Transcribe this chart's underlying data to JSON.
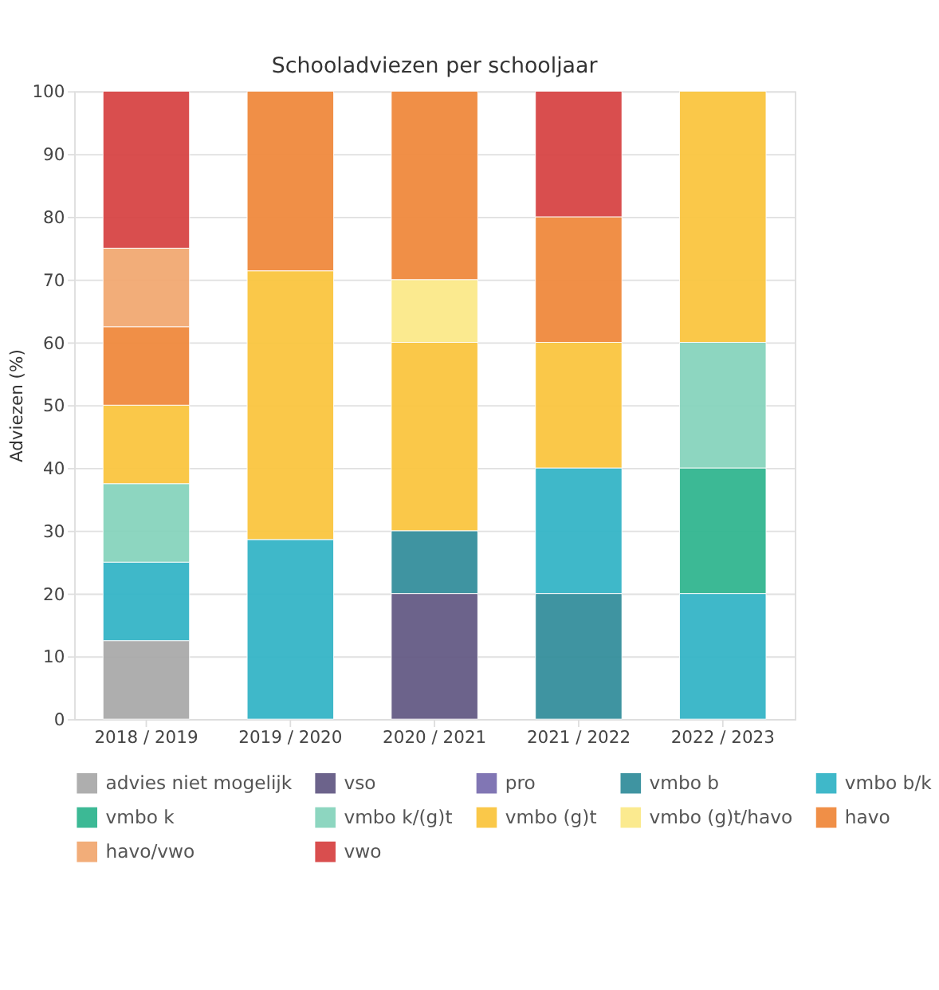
{
  "chart_data": {
    "type": "bar",
    "title": "Schooladviezen per schooljaar",
    "ylabel": "Adviezen (%)",
    "categories": [
      "2018 / 2019",
      "2019 / 2020",
      "2020 / 2021",
      "2021 / 2022",
      "2022 / 2023"
    ],
    "stacked": true,
    "ylim": [
      0,
      100
    ],
    "yticks": [
      0,
      10,
      20,
      30,
      40,
      50,
      60,
      70,
      80,
      90,
      100
    ],
    "grid": "y",
    "legend": "bottom",
    "series": [
      {
        "name": "advies niet mogelijk",
        "color": "#aaaaaa",
        "values": [
          12.5,
          null,
          null,
          null,
          null
        ]
      },
      {
        "name": "vso",
        "color": "#655b85",
        "values": [
          null,
          null,
          20,
          null,
          null
        ]
      },
      {
        "name": "pro",
        "color": "#7b6fb0",
        "values": [
          null,
          null,
          null,
          null,
          null
        ]
      },
      {
        "name": "vmbo b",
        "color": "#358f9c",
        "values": [
          null,
          null,
          10,
          20,
          null
        ]
      },
      {
        "name": "vmbo b/k",
        "color": "#35b5c7",
        "values": [
          12.5,
          28.6,
          null,
          20,
          20
        ]
      },
      {
        "name": "vmbo k",
        "color": "#32b690",
        "values": [
          null,
          null,
          null,
          null,
          20
        ]
      },
      {
        "name": "vmbo k/(g)t",
        "color": "#87d4bd",
        "values": [
          12.5,
          null,
          null,
          null,
          20
        ]
      },
      {
        "name": "vmbo (g)t",
        "color": "#fac640",
        "values": [
          12.5,
          42.8,
          30,
          20,
          40
        ]
      },
      {
        "name": "vmbo (g)t/havo",
        "color": "#fbe98a",
        "values": [
          null,
          null,
          10,
          null,
          null
        ]
      },
      {
        "name": "havo",
        "color": "#f08a3e",
        "values": [
          12.5,
          28.6,
          30,
          20,
          null
        ]
      },
      {
        "name": "havo/vwo",
        "color": "#f2a972",
        "values": [
          12.5,
          null,
          null,
          null,
          null
        ]
      },
      {
        "name": "vwo",
        "color": "#d74545",
        "values": [
          25,
          null,
          null,
          20,
          null
        ]
      }
    ]
  }
}
